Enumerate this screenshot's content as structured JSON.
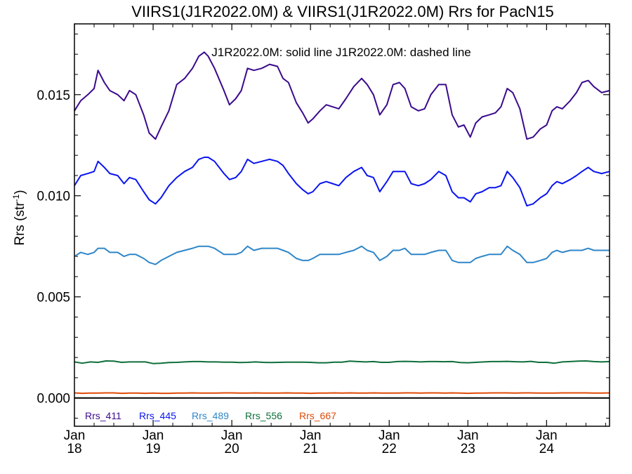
{
  "chart_data": {
    "type": "line",
    "title": "VIIRS1(J1R2022.0M) & VIIRS1(J1R2022.0M)  Rrs for PacN15",
    "subtitle": "J1R2022.0M: solid line   J1R2022.0M: dashed line",
    "ylabel_main": "Rrs (str",
    "ylabel_sup": "-1",
    "ylabel_close": ")",
    "ylim": [
      -0.0014,
      0.0185
    ],
    "xlim": [
      2018.0,
      2024.8
    ],
    "y_ticks": [
      {
        "value": 0.0,
        "label": "0.000"
      },
      {
        "value": 0.005,
        "label": "0.005"
      },
      {
        "value": 0.01,
        "label": "0.010"
      },
      {
        "value": 0.015,
        "label": "0.015"
      }
    ],
    "x_ticks": [
      {
        "value": 2018,
        "month": "Jan",
        "year": "18"
      },
      {
        "value": 2019,
        "month": "Jan",
        "year": "19"
      },
      {
        "value": 2020,
        "month": "Jan",
        "year": "20"
      },
      {
        "value": 2021,
        "month": "Jan",
        "year": "21"
      },
      {
        "value": 2022,
        "month": "Jan",
        "year": "22"
      },
      {
        "value": 2023,
        "month": "Jan",
        "year": "23"
      },
      {
        "value": 2024,
        "month": "Jan",
        "year": "24"
      }
    ],
    "zero_line": 0.0,
    "grid": false,
    "legend_position": "bottom-left",
    "series": [
      {
        "name": "Rrs_411",
        "color": "#3b0a8c",
        "x": [
          2018.0,
          2018.08,
          2018.17,
          2018.25,
          2018.3,
          2018.38,
          2018.45,
          2018.55,
          2018.63,
          2018.7,
          2018.78,
          2018.88,
          2018.95,
          2019.03,
          2019.1,
          2019.2,
          2019.3,
          2019.4,
          2019.5,
          2019.58,
          2019.65,
          2019.7,
          2019.78,
          2019.9,
          2019.97,
          2020.05,
          2020.12,
          2020.2,
          2020.28,
          2020.38,
          2020.48,
          2020.58,
          2020.65,
          2020.72,
          2020.82,
          2020.9,
          2020.97,
          2021.03,
          2021.12,
          2021.2,
          2021.28,
          2021.36,
          2021.45,
          2021.55,
          2021.65,
          2021.72,
          2021.8,
          2021.88,
          2021.97,
          2022.05,
          2022.13,
          2022.2,
          2022.28,
          2022.37,
          2022.45,
          2022.53,
          2022.63,
          2022.72,
          2022.8,
          2022.88,
          2022.95,
          2023.03,
          2023.1,
          2023.18,
          2023.27,
          2023.35,
          2023.42,
          2023.5,
          2023.57,
          2023.66,
          2023.75,
          2023.83,
          2023.92,
          2024.0,
          2024.07,
          2024.13,
          2024.2,
          2024.3,
          2024.38,
          2024.45,
          2024.53,
          2024.6,
          2024.7,
          2024.8
        ],
        "values": [
          0.0142,
          0.0147,
          0.015,
          0.0153,
          0.0162,
          0.0156,
          0.0152,
          0.015,
          0.0147,
          0.0152,
          0.015,
          0.014,
          0.0131,
          0.0128,
          0.0134,
          0.0142,
          0.0155,
          0.0158,
          0.0163,
          0.0169,
          0.0171,
          0.0169,
          0.0163,
          0.0152,
          0.0145,
          0.0148,
          0.0152,
          0.0163,
          0.0162,
          0.0163,
          0.0165,
          0.0164,
          0.0158,
          0.0156,
          0.0146,
          0.0141,
          0.0136,
          0.0138,
          0.0142,
          0.0145,
          0.0144,
          0.0143,
          0.0148,
          0.0154,
          0.0158,
          0.0155,
          0.015,
          0.014,
          0.0145,
          0.0155,
          0.0156,
          0.0153,
          0.0144,
          0.0142,
          0.0143,
          0.015,
          0.0155,
          0.0155,
          0.014,
          0.0134,
          0.0135,
          0.0129,
          0.0136,
          0.0139,
          0.014,
          0.0141,
          0.0144,
          0.0153,
          0.0151,
          0.0143,
          0.0128,
          0.0129,
          0.0133,
          0.0135,
          0.0142,
          0.0144,
          0.0143,
          0.0147,
          0.0151,
          0.0156,
          0.0157,
          0.0154,
          0.0151,
          0.0152
        ]
      },
      {
        "name": "Rrs_445",
        "color": "#0a14f0",
        "x": [
          2018.0,
          2018.08,
          2018.17,
          2018.25,
          2018.3,
          2018.38,
          2018.45,
          2018.55,
          2018.63,
          2018.7,
          2018.78,
          2018.88,
          2018.95,
          2019.03,
          2019.1,
          2019.2,
          2019.3,
          2019.4,
          2019.5,
          2019.58,
          2019.65,
          2019.7,
          2019.78,
          2019.9,
          2019.97,
          2020.05,
          2020.12,
          2020.2,
          2020.28,
          2020.38,
          2020.48,
          2020.58,
          2020.65,
          2020.72,
          2020.82,
          2020.9,
          2020.97,
          2021.03,
          2021.12,
          2021.2,
          2021.28,
          2021.36,
          2021.45,
          2021.55,
          2021.65,
          2021.72,
          2021.8,
          2021.88,
          2021.97,
          2022.05,
          2022.13,
          2022.2,
          2022.28,
          2022.37,
          2022.45,
          2022.53,
          2022.63,
          2022.72,
          2022.8,
          2022.88,
          2022.95,
          2023.03,
          2023.1,
          2023.18,
          2023.27,
          2023.35,
          2023.42,
          2023.5,
          2023.57,
          2023.66,
          2023.75,
          2023.83,
          2023.92,
          2024.0,
          2024.07,
          2024.13,
          2024.2,
          2024.3,
          2024.38,
          2024.45,
          2024.53,
          2024.6,
          2024.7,
          2024.8
        ],
        "values": [
          0.0105,
          0.011,
          0.0111,
          0.0112,
          0.0117,
          0.0114,
          0.0111,
          0.011,
          0.0106,
          0.0109,
          0.0108,
          0.0102,
          0.0098,
          0.0096,
          0.0099,
          0.0105,
          0.0109,
          0.0112,
          0.0114,
          0.0118,
          0.0119,
          0.0119,
          0.0117,
          0.0111,
          0.0108,
          0.0109,
          0.0112,
          0.0118,
          0.0116,
          0.0117,
          0.0118,
          0.0117,
          0.0115,
          0.0111,
          0.0106,
          0.0103,
          0.0101,
          0.0102,
          0.0106,
          0.0107,
          0.0106,
          0.0105,
          0.0109,
          0.0112,
          0.0114,
          0.011,
          0.0109,
          0.0102,
          0.0107,
          0.0112,
          0.0112,
          0.0112,
          0.0106,
          0.0105,
          0.0106,
          0.0108,
          0.0112,
          0.011,
          0.0102,
          0.0099,
          0.0099,
          0.0097,
          0.0101,
          0.0102,
          0.0104,
          0.0104,
          0.0105,
          0.0112,
          0.0109,
          0.0104,
          0.0095,
          0.0096,
          0.0099,
          0.0101,
          0.0105,
          0.0107,
          0.0106,
          0.0108,
          0.011,
          0.0112,
          0.0114,
          0.0112,
          0.0111,
          0.0112
        ]
      },
      {
        "name": "Rrs_489",
        "color": "#2f86c8",
        "x": [
          2018.0,
          2018.08,
          2018.17,
          2018.25,
          2018.3,
          2018.38,
          2018.45,
          2018.55,
          2018.63,
          2018.7,
          2018.78,
          2018.88,
          2018.95,
          2019.03,
          2019.1,
          2019.2,
          2019.3,
          2019.4,
          2019.5,
          2019.58,
          2019.65,
          2019.7,
          2019.78,
          2019.9,
          2019.97,
          2020.05,
          2020.12,
          2020.2,
          2020.28,
          2020.38,
          2020.48,
          2020.58,
          2020.65,
          2020.72,
          2020.82,
          2020.9,
          2020.97,
          2021.03,
          2021.12,
          2021.2,
          2021.28,
          2021.36,
          2021.45,
          2021.55,
          2021.65,
          2021.72,
          2021.8,
          2021.88,
          2021.97,
          2022.05,
          2022.13,
          2022.2,
          2022.28,
          2022.37,
          2022.45,
          2022.53,
          2022.63,
          2022.72,
          2022.8,
          2022.88,
          2022.95,
          2023.03,
          2023.1,
          2023.18,
          2023.27,
          2023.35,
          2023.42,
          2023.5,
          2023.57,
          2023.66,
          2023.75,
          2023.83,
          2023.92,
          2024.0,
          2024.07,
          2024.13,
          2024.2,
          2024.3,
          2024.38,
          2024.45,
          2024.53,
          2024.6,
          2024.7,
          2024.8
        ],
        "values": [
          0.007,
          0.0072,
          0.0071,
          0.0072,
          0.0074,
          0.0074,
          0.0072,
          0.0072,
          0.007,
          0.0071,
          0.0071,
          0.0069,
          0.0067,
          0.0066,
          0.0068,
          0.007,
          0.0072,
          0.0073,
          0.0074,
          0.0075,
          0.0075,
          0.0075,
          0.0074,
          0.0071,
          0.0071,
          0.0071,
          0.0072,
          0.0075,
          0.0073,
          0.0074,
          0.0074,
          0.0074,
          0.0073,
          0.0072,
          0.0069,
          0.0068,
          0.0068,
          0.0069,
          0.0071,
          0.0071,
          0.0071,
          0.0071,
          0.0072,
          0.0073,
          0.0075,
          0.0073,
          0.0072,
          0.0068,
          0.007,
          0.0073,
          0.0073,
          0.0074,
          0.0071,
          0.0071,
          0.0071,
          0.0072,
          0.0073,
          0.0073,
          0.0068,
          0.0067,
          0.0067,
          0.0067,
          0.0069,
          0.007,
          0.0071,
          0.0071,
          0.0071,
          0.0075,
          0.0073,
          0.0071,
          0.0067,
          0.0067,
          0.0068,
          0.0069,
          0.0072,
          0.0073,
          0.0072,
          0.0073,
          0.0073,
          0.0073,
          0.0074,
          0.0073,
          0.0073,
          0.0073
        ]
      },
      {
        "name": "Rrs_556",
        "color": "#0e6e3a",
        "x": [
          2018.0,
          2018.1,
          2018.2,
          2018.3,
          2018.4,
          2018.5,
          2018.6,
          2018.7,
          2018.8,
          2018.9,
          2019.0,
          2019.1,
          2019.2,
          2019.3,
          2019.4,
          2019.5,
          2019.6,
          2019.7,
          2019.8,
          2019.9,
          2020.0,
          2020.1,
          2020.2,
          2020.3,
          2020.4,
          2020.5,
          2020.6,
          2020.7,
          2020.8,
          2020.9,
          2021.0,
          2021.1,
          2021.2,
          2021.3,
          2021.4,
          2021.5,
          2021.6,
          2021.7,
          2021.8,
          2021.9,
          2022.0,
          2022.1,
          2022.2,
          2022.3,
          2022.4,
          2022.5,
          2022.6,
          2022.7,
          2022.8,
          2022.9,
          2023.0,
          2023.1,
          2023.2,
          2023.3,
          2023.4,
          2023.5,
          2023.6,
          2023.7,
          2023.8,
          2023.9,
          2024.0,
          2024.1,
          2024.2,
          2024.3,
          2024.4,
          2024.5,
          2024.6,
          2024.7,
          2024.8
        ],
        "values": [
          0.00178,
          0.00172,
          0.00178,
          0.00176,
          0.00183,
          0.00182,
          0.00176,
          0.00178,
          0.00178,
          0.00178,
          0.0017,
          0.00172,
          0.00175,
          0.00176,
          0.00178,
          0.0018,
          0.0018,
          0.00178,
          0.00178,
          0.00177,
          0.00177,
          0.00175,
          0.00176,
          0.00178,
          0.00176,
          0.00175,
          0.00176,
          0.00177,
          0.00177,
          0.00177,
          0.00176,
          0.00174,
          0.00174,
          0.00177,
          0.00177,
          0.00182,
          0.0018,
          0.00178,
          0.0018,
          0.00176,
          0.00176,
          0.0018,
          0.00181,
          0.0018,
          0.00178,
          0.0018,
          0.0018,
          0.00179,
          0.0018,
          0.00175,
          0.00174,
          0.00176,
          0.00178,
          0.0018,
          0.0018,
          0.00181,
          0.00179,
          0.00178,
          0.00181,
          0.00176,
          0.00176,
          0.00172,
          0.00178,
          0.0018,
          0.00182,
          0.00183,
          0.0018,
          0.00178,
          0.0018
        ]
      },
      {
        "name": "Rrs_667",
        "color": "#e04a08",
        "x": [
          2018.0,
          2018.1,
          2018.2,
          2018.3,
          2018.4,
          2018.5,
          2018.6,
          2018.7,
          2018.8,
          2018.9,
          2019.0,
          2019.1,
          2019.2,
          2019.3,
          2019.4,
          2019.5,
          2019.6,
          2019.7,
          2019.8,
          2019.9,
          2020.0,
          2020.1,
          2020.2,
          2020.3,
          2020.4,
          2020.5,
          2020.6,
          2020.7,
          2020.8,
          2020.9,
          2021.0,
          2021.1,
          2021.2,
          2021.3,
          2021.4,
          2021.5,
          2021.6,
          2021.7,
          2021.8,
          2021.9,
          2022.0,
          2022.1,
          2022.2,
          2022.3,
          2022.4,
          2022.5,
          2022.6,
          2022.7,
          2022.8,
          2022.9,
          2023.0,
          2023.1,
          2023.2,
          2023.3,
          2023.4,
          2023.5,
          2023.6,
          2023.7,
          2023.8,
          2023.9,
          2024.0,
          2024.1,
          2024.2,
          2024.3,
          2024.4,
          2024.5,
          2024.6,
          2024.7,
          2024.8
        ],
        "values": [
          0.00025,
          0.00023,
          0.00024,
          0.00024,
          0.00025,
          0.00025,
          0.00023,
          0.00024,
          0.00024,
          0.00023,
          0.00024,
          0.00023,
          0.00023,
          0.00024,
          0.00024,
          0.00025,
          0.00024,
          0.00024,
          0.00024,
          0.00025,
          0.00025,
          0.00024,
          0.00024,
          0.00025,
          0.00024,
          0.00024,
          0.00024,
          0.00025,
          0.00024,
          0.00024,
          0.00023,
          0.00024,
          0.00024,
          0.00025,
          0.00024,
          0.00025,
          0.00024,
          0.00024,
          0.00025,
          0.00024,
          0.00024,
          0.00024,
          0.00025,
          0.00025,
          0.00024,
          0.00025,
          0.00025,
          0.00024,
          0.00025,
          0.00024,
          0.00023,
          0.00024,
          0.00024,
          0.00025,
          0.00025,
          0.00025,
          0.00024,
          0.00025,
          0.00025,
          0.00024,
          0.00024,
          0.00024,
          0.00025,
          0.00025,
          0.00025,
          0.00025,
          0.00024,
          0.00024,
          0.00025
        ]
      }
    ]
  }
}
